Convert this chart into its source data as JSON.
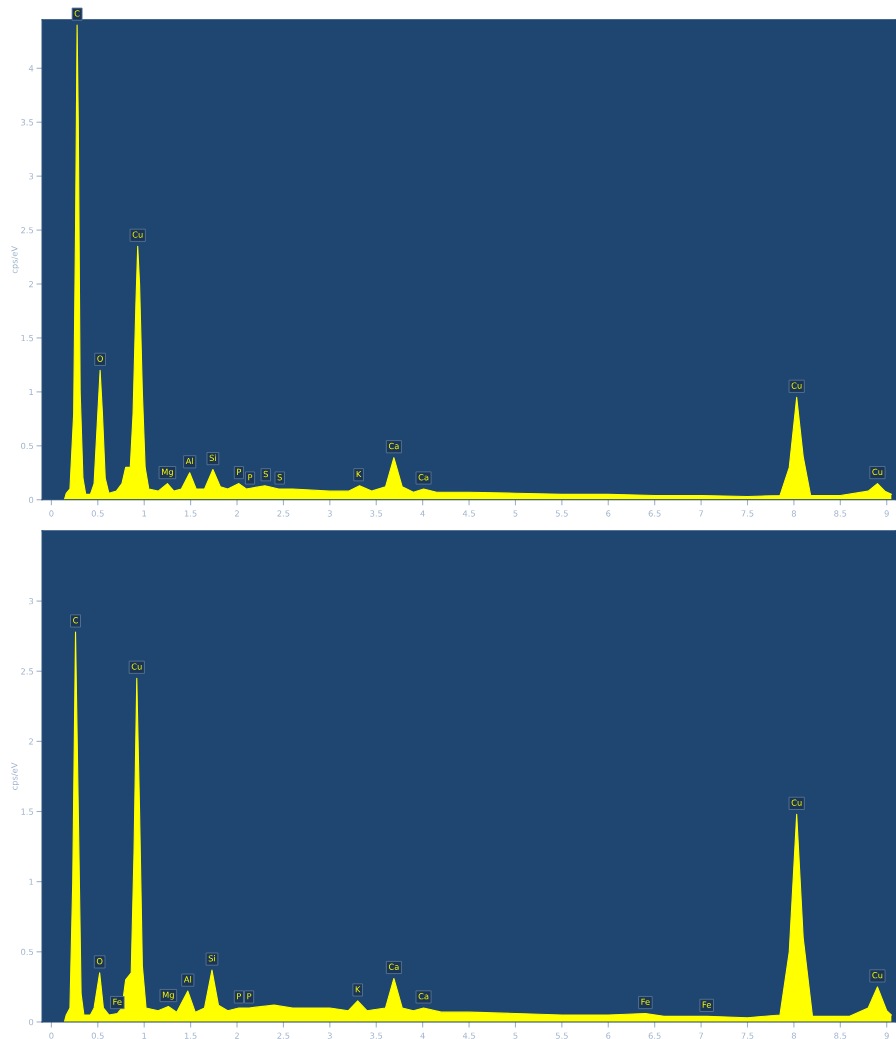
{
  "chart_data": [
    {
      "type": "area",
      "ylabel": "cps/eV",
      "xlim": [
        -0.1,
        9.1
      ],
      "ylim": [
        0,
        4.45
      ],
      "xticks": [
        0,
        0.5,
        1,
        1.5,
        2,
        2.5,
        3,
        3.5,
        4,
        4.5,
        5,
        5.5,
        6,
        6.5,
        7,
        7.5,
        8,
        8.5,
        9
      ],
      "yticks": [
        0,
        0.5,
        1,
        1.5,
        2,
        2.5,
        3,
        3.5,
        4
      ],
      "grid": false,
      "legend": false,
      "x": [
        0.14,
        0.16,
        0.2,
        0.24,
        0.26,
        0.277,
        0.29,
        0.31,
        0.34,
        0.37,
        0.42,
        0.46,
        0.5,
        0.525,
        0.55,
        0.58,
        0.62,
        0.7,
        0.76,
        0.8,
        0.85,
        0.88,
        0.91,
        0.93,
        0.95,
        0.98,
        1.01,
        1.05,
        1.15,
        1.25,
        1.32,
        1.4,
        1.49,
        1.56,
        1.65,
        1.74,
        1.82,
        1.9,
        2.02,
        2.1,
        2.3,
        2.45,
        2.6,
        3.0,
        3.2,
        3.32,
        3.45,
        3.6,
        3.69,
        3.78,
        3.9,
        4.01,
        4.15,
        4.5,
        5.0,
        5.5,
        6.0,
        6.5,
        7.0,
        7.5,
        7.85,
        7.95,
        8.03,
        8.1,
        8.18,
        8.5,
        8.8,
        8.9,
        8.98,
        9.05
      ],
      "series": [
        {
          "color": "#ffff00",
          "values": [
            0,
            0.06,
            0.1,
            0.8,
            2.5,
            4.4,
            3.5,
            1.0,
            0.2,
            0.05,
            0.05,
            0.15,
            0.8,
            1.2,
            0.8,
            0.2,
            0.06,
            0.08,
            0.15,
            0.3,
            0.3,
            0.8,
            1.8,
            2.35,
            2.0,
            1.0,
            0.3,
            0.1,
            0.08,
            0.15,
            0.08,
            0.1,
            0.25,
            0.1,
            0.1,
            0.28,
            0.12,
            0.1,
            0.15,
            0.1,
            0.13,
            0.1,
            0.1,
            0.08,
            0.08,
            0.13,
            0.08,
            0.12,
            0.39,
            0.12,
            0.07,
            0.1,
            0.07,
            0.07,
            0.06,
            0.05,
            0.05,
            0.04,
            0.04,
            0.03,
            0.04,
            0.3,
            0.95,
            0.4,
            0.04,
            0.04,
            0.08,
            0.15,
            0.08,
            0.05
          ]
        }
      ],
      "annotations": [
        {
          "text": "C",
          "x": 0.277,
          "y": 4.4
        },
        {
          "text": "O",
          "x": 0.525,
          "y": 1.2
        },
        {
          "text": "Cu",
          "x": 0.93,
          "y": 2.35
        },
        {
          "text": "Mg",
          "x": 1.25,
          "y": 0.15
        },
        {
          "text": "Al",
          "x": 1.49,
          "y": 0.25
        },
        {
          "text": "Si",
          "x": 1.74,
          "y": 0.28
        },
        {
          "text": "P",
          "x": 2.02,
          "y": 0.15
        },
        {
          "text": "P",
          "x": 2.14,
          "y": 0.1
        },
        {
          "text": "S",
          "x": 2.31,
          "y": 0.13
        },
        {
          "text": "S",
          "x": 2.46,
          "y": 0.1
        },
        {
          "text": "K",
          "x": 3.31,
          "y": 0.13
        },
        {
          "text": "Ca",
          "x": 3.69,
          "y": 0.39
        },
        {
          "text": "Ca",
          "x": 4.01,
          "y": 0.1
        },
        {
          "text": "Cu",
          "x": 8.03,
          "y": 0.95
        },
        {
          "text": "Cu",
          "x": 8.9,
          "y": 0.15
        }
      ]
    },
    {
      "type": "area",
      "ylabel": "cps/eV",
      "xlim": [
        -0.1,
        9.1
      ],
      "ylim": [
        0,
        3.5
      ],
      "xticks": [
        0,
        0.5,
        1,
        1.5,
        2,
        2.5,
        3,
        3.5,
        4,
        4.5,
        5,
        5.5,
        6,
        6.5,
        7,
        7.5,
        8,
        8.5,
        9
      ],
      "yticks": [
        0,
        0.5,
        1,
        1.5,
        2,
        2.5,
        3
      ],
      "grid": false,
      "legend": false,
      "x": [
        0.14,
        0.16,
        0.2,
        0.23,
        0.26,
        0.29,
        0.32,
        0.35,
        0.42,
        0.46,
        0.52,
        0.56,
        0.62,
        0.71,
        0.76,
        0.8,
        0.86,
        0.89,
        0.92,
        0.95,
        0.98,
        1.02,
        1.15,
        1.26,
        1.35,
        1.47,
        1.55,
        1.65,
        1.73,
        1.8,
        1.9,
        2.02,
        2.13,
        2.4,
        2.6,
        3.0,
        3.2,
        3.3,
        3.4,
        3.6,
        3.69,
        3.78,
        3.9,
        4.01,
        4.2,
        4.5,
        5.0,
        5.5,
        6.0,
        6.4,
        6.6,
        7.06,
        7.5,
        7.85,
        7.95,
        8.03,
        8.1,
        8.2,
        8.6,
        8.8,
        8.9,
        9.0,
        9.05
      ],
      "series": [
        {
          "color": "#ffff00",
          "values": [
            0,
            0.05,
            0.1,
            1.0,
            2.78,
            1.5,
            0.2,
            0.05,
            0.05,
            0.1,
            0.35,
            0.1,
            0.05,
            0.06,
            0.1,
            0.3,
            0.35,
            1.2,
            2.45,
            1.5,
            0.4,
            0.1,
            0.08,
            0.11,
            0.07,
            0.22,
            0.07,
            0.1,
            0.37,
            0.12,
            0.08,
            0.1,
            0.1,
            0.12,
            0.1,
            0.1,
            0.08,
            0.15,
            0.08,
            0.1,
            0.31,
            0.1,
            0.08,
            0.1,
            0.07,
            0.07,
            0.06,
            0.05,
            0.05,
            0.06,
            0.04,
            0.04,
            0.03,
            0.05,
            0.5,
            1.48,
            0.6,
            0.04,
            0.04,
            0.1,
            0.25,
            0.08,
            0.05
          ]
        }
      ],
      "annotations": [
        {
          "text": "C",
          "x": 0.26,
          "y": 2.78
        },
        {
          "text": "O",
          "x": 0.52,
          "y": 0.35
        },
        {
          "text": "Fe",
          "x": 0.71,
          "y": 0.06
        },
        {
          "text": "Cu",
          "x": 0.92,
          "y": 2.45
        },
        {
          "text": "Mg",
          "x": 1.26,
          "y": 0.11
        },
        {
          "text": "Al",
          "x": 1.47,
          "y": 0.22
        },
        {
          "text": "Si",
          "x": 1.73,
          "y": 0.37
        },
        {
          "text": "P",
          "x": 2.02,
          "y": 0.1
        },
        {
          "text": "P",
          "x": 2.13,
          "y": 0.1
        },
        {
          "text": "K",
          "x": 3.3,
          "y": 0.15
        },
        {
          "text": "Ca",
          "x": 3.69,
          "y": 0.31
        },
        {
          "text": "Ca",
          "x": 4.01,
          "y": 0.1
        },
        {
          "text": "Fe",
          "x": 6.4,
          "y": 0.06
        },
        {
          "text": "Fe",
          "x": 7.06,
          "y": 0.04
        },
        {
          "text": "Cu",
          "x": 8.03,
          "y": 1.48
        },
        {
          "text": "Cu",
          "x": 8.9,
          "y": 0.25
        }
      ]
    }
  ]
}
